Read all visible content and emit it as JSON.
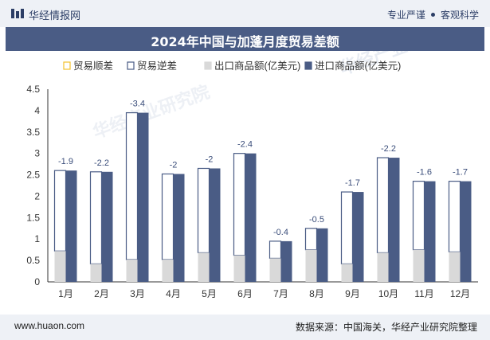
{
  "header": {
    "brand": "华经情报网",
    "tag1": "专业严谨",
    "tag2": "客观科学"
  },
  "title": "2024年中国与加蓬月度贸易差额",
  "footer": {
    "url": "www.huaon.com",
    "source": "数据来源：中国海关，华经产业研究院整理"
  },
  "watermark": "华经产业研究院",
  "colors": {
    "import": "#4a5c85",
    "export": "#d9d9d9",
    "surplus_border": "#f2c22e",
    "deficit_border": "#4a5c85",
    "label": "#3a4d7a"
  },
  "chart_data": {
    "type": "bar",
    "categories": [
      "1月",
      "2月",
      "3月",
      "4月",
      "5月",
      "6月",
      "7月",
      "8月",
      "9月",
      "10月",
      "11月",
      "12月"
    ],
    "series": [
      {
        "name": "贸易顺差",
        "values": [
          0,
          0,
          0,
          0,
          0,
          0,
          0,
          0,
          0,
          0,
          0,
          0
        ]
      },
      {
        "name": "贸易逆差",
        "values": [
          -1.9,
          -2.2,
          -3.4,
          -2,
          -2,
          -2.4,
          -0.4,
          -0.5,
          -1.7,
          -2.2,
          -1.6,
          -1.7
        ]
      },
      {
        "name": "出口商品额(亿美元)",
        "values": [
          0.72,
          0.42,
          0.52,
          0.52,
          0.68,
          0.62,
          0.55,
          0.75,
          0.42,
          0.68,
          0.75,
          0.7
        ]
      },
      {
        "name": "进口商品额(亿美元)",
        "values": [
          2.6,
          2.57,
          3.95,
          2.52,
          2.65,
          3.0,
          0.95,
          1.25,
          2.1,
          2.9,
          2.35,
          2.35
        ]
      }
    ],
    "data_labels": [
      "-1.9",
      "-2.2",
      "-3.4",
      "-2",
      "-2",
      "-2.4",
      "-0.4",
      "-0.5",
      "-1.7",
      "-2.2",
      "-1.6",
      "-1.7"
    ],
    "y_ticks": [
      "0",
      "0.5",
      "1",
      "1.5",
      "2",
      "2.5",
      "3",
      "3.5",
      "4",
      "4.5"
    ],
    "ylim": [
      0,
      4.5
    ],
    "legend": "top-right",
    "grid": false
  }
}
